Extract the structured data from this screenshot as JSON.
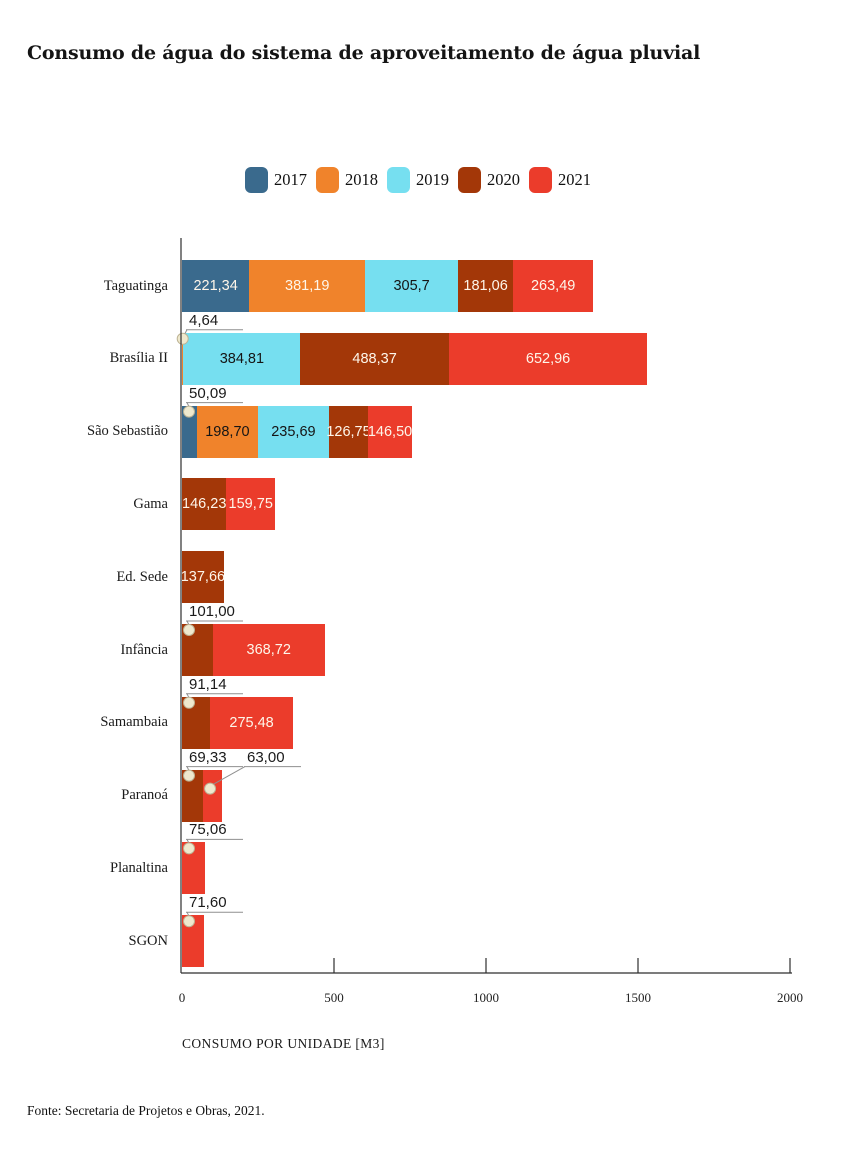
{
  "title": "Consumo de água do sistema de aproveitamento de água pluvial",
  "source": "Fonte: Secretaria de Projetos e Obras, 2021.",
  "chart_data": {
    "type": "bar",
    "variant": "horizontal-stacked",
    "title": "Consumo de água do sistema de aproveitamento de água pluvial",
    "xlabel": "CONSUMO POR UNIDADE [M3]",
    "ylabel": "",
    "xlim": [
      0,
      2000
    ],
    "xticks": [
      0,
      500,
      1000,
      1500,
      2000
    ],
    "grid": false,
    "legend_position": "top-center",
    "legend": [
      {
        "year": "2017",
        "color": "#3A6A8D"
      },
      {
        "year": "2018",
        "color": "#F0832B"
      },
      {
        "year": "2019",
        "color": "#76DFF0"
      },
      {
        "year": "2020",
        "color": "#A33708"
      },
      {
        "year": "2021",
        "color": "#EB3C2B"
      }
    ],
    "rows": [
      {
        "name": "Taguatinga",
        "segments": [
          {
            "year": "2017",
            "value": 221.34,
            "label": "221,34",
            "label_style": "light"
          },
          {
            "year": "2018",
            "value": 381.19,
            "label": "381,19",
            "label_style": "light"
          },
          {
            "year": "2019",
            "value": 305.7,
            "label": "305,7",
            "label_style": "dark"
          },
          {
            "year": "2020",
            "value": 181.06,
            "label": "181,06",
            "label_style": "light"
          },
          {
            "year": "2021",
            "value": 263.49,
            "label": "263,49",
            "label_style": "light"
          }
        ]
      },
      {
        "name": "Brasília II",
        "segments": [
          {
            "year": "2018",
            "value": 4.64,
            "label": "4,64",
            "callout": true
          },
          {
            "year": "2019",
            "value": 384.81,
            "label": "384,81",
            "label_style": "dark"
          },
          {
            "year": "2020",
            "value": 488.37,
            "label": "488,37",
            "label_style": "light"
          },
          {
            "year": "2021",
            "value": 652.96,
            "label": "652,96",
            "label_style": "light"
          }
        ]
      },
      {
        "name": "São Sebastião",
        "segments": [
          {
            "year": "2017",
            "value": 50.09,
            "label": "50,09",
            "callout": true
          },
          {
            "year": "2018",
            "value": 198.7,
            "label": "198,70",
            "label_style": "dark"
          },
          {
            "year": "2019",
            "value": 235.69,
            "label": "235,69",
            "label_style": "dark"
          },
          {
            "year": "2020",
            "value": 126.75,
            "label": "126,75",
            "label_style": "light"
          },
          {
            "year": "2021",
            "value": 146.5,
            "label": "146,50",
            "label_style": "light"
          }
        ]
      },
      {
        "name": "Gama",
        "segments": [
          {
            "year": "2020",
            "value": 146.23,
            "label": "146,23",
            "label_style": "light"
          },
          {
            "year": "2021",
            "value": 159.75,
            "label": "159,75",
            "label_style": "light"
          }
        ]
      },
      {
        "name": "Ed. Sede",
        "segments": [
          {
            "year": "2020",
            "value": 137.66,
            "label": "137,66",
            "label_style": "light"
          }
        ]
      },
      {
        "name": "Infância",
        "segments": [
          {
            "year": "2020",
            "value": 101.0,
            "label": "101,00",
            "callout": true
          },
          {
            "year": "2021",
            "value": 368.72,
            "label": "368,72",
            "label_style": "light"
          }
        ]
      },
      {
        "name": "Samambaia",
        "segments": [
          {
            "year": "2020",
            "value": 91.14,
            "label": "91,14",
            "callout": true
          },
          {
            "year": "2021",
            "value": 275.48,
            "label": "275,48",
            "label_style": "light"
          }
        ]
      },
      {
        "name": "Paranoá",
        "segments": [
          {
            "year": "2020",
            "value": 69.33,
            "label": "69,33",
            "callout": true
          },
          {
            "year": "2021",
            "value": 63.0,
            "label": "63,00",
            "callout": true
          }
        ]
      },
      {
        "name": "Planaltina",
        "segments": [
          {
            "year": "2021",
            "value": 75.06,
            "label": "75,06",
            "callout": true
          }
        ]
      },
      {
        "name": "SGON",
        "segments": [
          {
            "year": "2021",
            "value": 71.6,
            "label": "71,60",
            "callout": true
          }
        ]
      }
    ]
  },
  "colors": {
    "callout_dot": "#EFE9CE",
    "callout_dot_edge": "#BDB394",
    "leader_line": "#8F8F8F",
    "axis_line": "#2E2E2E",
    "label_light": "#FEF6EA",
    "label_dark": "#151515"
  }
}
